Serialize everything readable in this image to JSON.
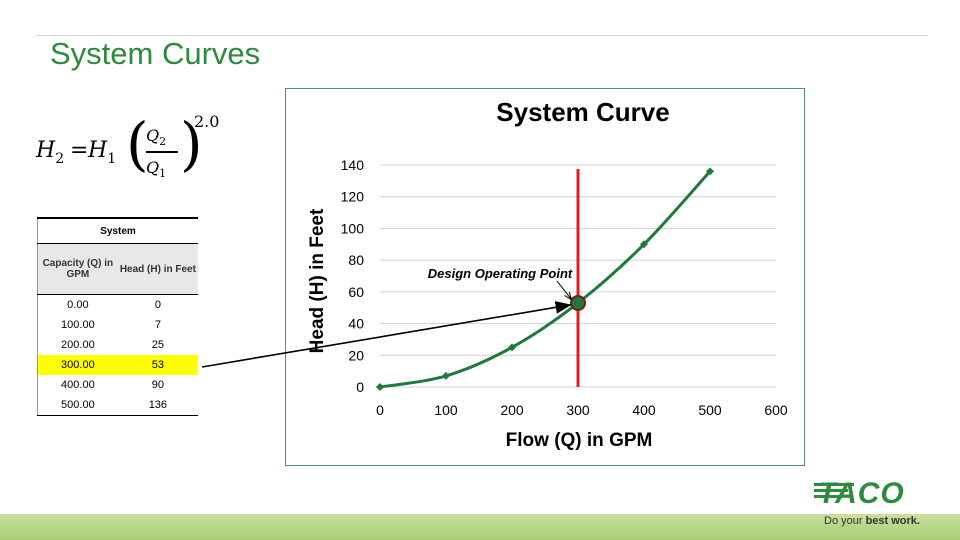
{
  "slide": {
    "title": "System Curves"
  },
  "formula": {
    "lhs": "H",
    "lhs_sub": "2",
    "equals": "=",
    "rhs": "H",
    "rhs_sub": "1",
    "numerator": "Q",
    "numerator_sub": "2",
    "denominator": "Q",
    "denominator_sub": "1",
    "exponent": "2.0"
  },
  "table": {
    "title": "System",
    "headers": [
      "Capacity (Q) in GPM",
      "Head (H) in Feet"
    ],
    "rows": [
      [
        "0.00",
        "0"
      ],
      [
        "100.00",
        "7"
      ],
      [
        "200.00",
        "25"
      ],
      [
        "300.00",
        "53"
      ],
      [
        "400.00",
        "90"
      ],
      [
        "500.00",
        "136"
      ]
    ],
    "highlight_row_index": 3,
    "highlight_color": "#ffff00"
  },
  "chart_data": {
    "type": "line",
    "title": "System Curve",
    "xlabel": "Flow (Q) in GPM",
    "ylabel": "Head (H) in Feet",
    "xlim": [
      0,
      600
    ],
    "ylim": [
      0,
      140
    ],
    "x_ticks": [
      0,
      100,
      200,
      300,
      400,
      500,
      600
    ],
    "y_ticks": [
      0,
      20,
      40,
      60,
      80,
      100,
      120,
      140
    ],
    "grid": "horizontal",
    "series": [
      {
        "x": [
          0,
          100,
          200,
          300,
          400,
          500
        ],
        "y": [
          0,
          7,
          25,
          53,
          90,
          136
        ],
        "color": "#1e7a3c"
      }
    ],
    "design_line": {
      "x": 300,
      "color": "#e02020"
    },
    "operating_point": {
      "x": 300,
      "y": 53,
      "label": "Design Operating Point",
      "color": "#1e7a3c"
    }
  },
  "logo": {
    "brand": "TACO",
    "tagline_prefix": "Do your ",
    "tagline_bold": "best work.",
    "color": "#2e8b3d"
  }
}
